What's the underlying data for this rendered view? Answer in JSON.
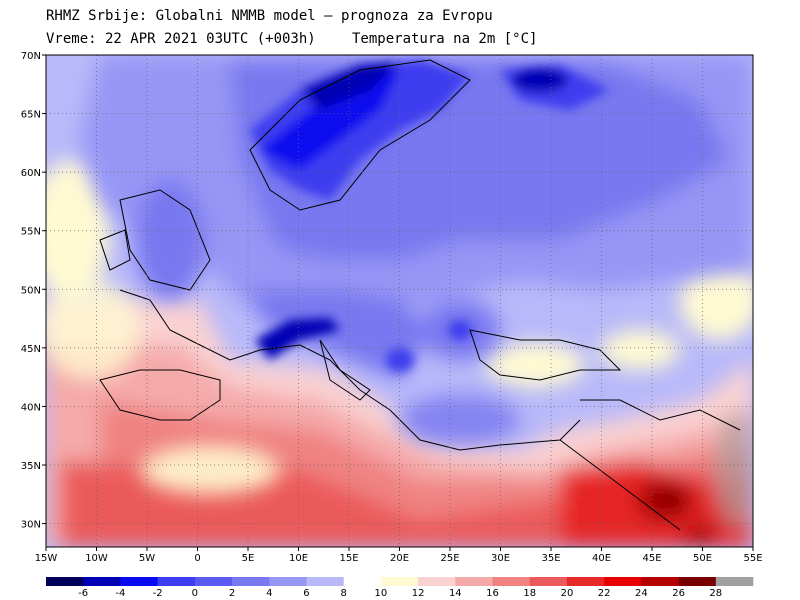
{
  "header": {
    "line1": "RHMZ Srbije: Globalni NMMB model — prognoza za Evropu",
    "line2": "Vreme: 22 APR 2021 03UTC (+003h)",
    "parameter": "Temperatura na 2m [°C]"
  },
  "map": {
    "lon_range": [
      -15,
      55
    ],
    "lat_range": [
      28,
      70
    ],
    "lat_ticks": [
      {
        "value": 70,
        "label": "70N"
      },
      {
        "value": 65,
        "label": "65N"
      },
      {
        "value": 60,
        "label": "60N"
      },
      {
        "value": 55,
        "label": "55N"
      },
      {
        "value": 50,
        "label": "50N"
      },
      {
        "value": 45,
        "label": "45N"
      },
      {
        "value": 40,
        "label": "40N"
      },
      {
        "value": 35,
        "label": "35N"
      },
      {
        "value": 30,
        "label": "30N"
      }
    ],
    "lon_ticks": [
      {
        "value": -15,
        "label": "15W"
      },
      {
        "value": -10,
        "label": "10W"
      },
      {
        "value": -5,
        "label": "5W"
      },
      {
        "value": 0,
        "label": "0"
      },
      {
        "value": 5,
        "label": "5E"
      },
      {
        "value": 10,
        "label": "10E"
      },
      {
        "value": 15,
        "label": "15E"
      },
      {
        "value": 20,
        "label": "20E"
      },
      {
        "value": 25,
        "label": "25E"
      },
      {
        "value": 30,
        "label": "30E"
      },
      {
        "value": 35,
        "label": "35E"
      },
      {
        "value": 40,
        "label": "40E"
      },
      {
        "value": 45,
        "label": "45E"
      },
      {
        "value": 50,
        "label": "50E"
      },
      {
        "value": 55,
        "label": "55E"
      }
    ],
    "gridlines": "dotted"
  },
  "colorbar": {
    "colors": [
      "#00005a",
      "#0000b4",
      "#0a0af0",
      "#3c3cf0",
      "#5a5af0",
      "#7878f0",
      "#9696f5",
      "#b9b9fa",
      "#ffffff",
      "#fffad2",
      "#fad2d2",
      "#f5aaaa",
      "#f08282",
      "#eb5a5a",
      "#e62828",
      "#e60000",
      "#b40000",
      "#780000",
      "#a0a0a0"
    ],
    "labels": [
      "-6",
      "-4",
      "-2",
      "0",
      "2",
      "4",
      "6",
      "8",
      "10",
      "12",
      "14",
      "16",
      "18",
      "20",
      "22",
      "24",
      "26",
      "28"
    ]
  }
}
